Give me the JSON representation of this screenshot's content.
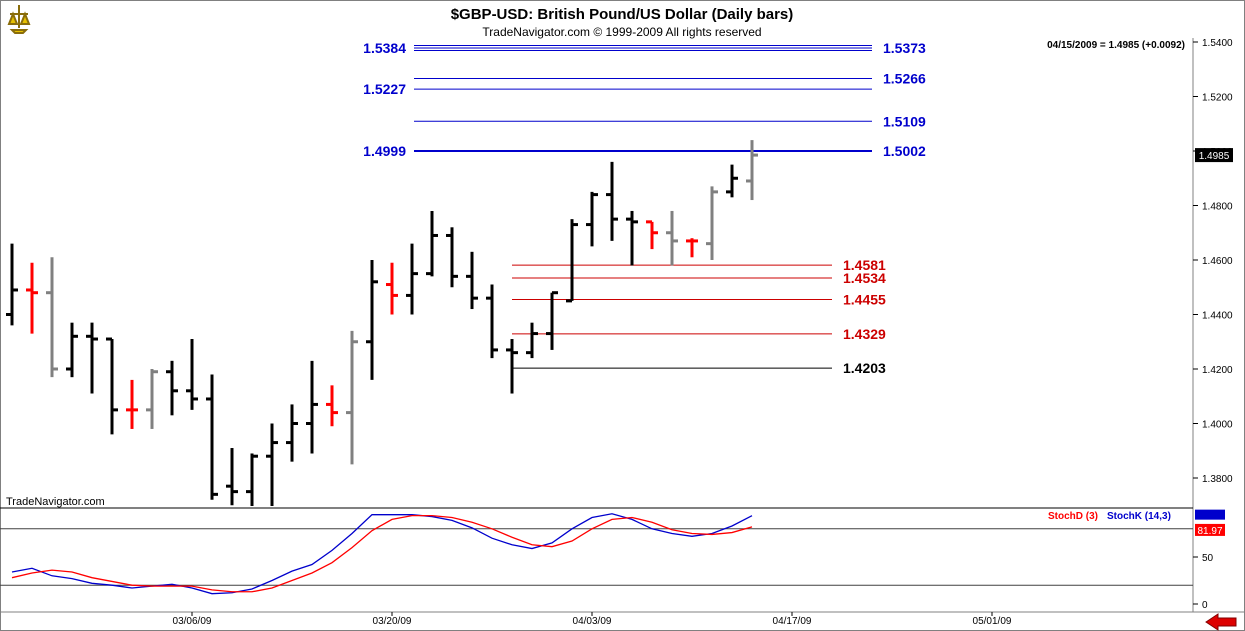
{
  "header": {
    "title": "$GBP-USD:  British Pound/US Dollar  (Daily bars)",
    "copyright": "TradeNavigator.com © 1999-2009 All rights reserved",
    "last_quote": "04/15/2009 = 1.4985 (+0.0092)",
    "watermark": "TradeNavigator.com"
  },
  "colors": {
    "up_bar": "#000000",
    "down_bar": "#808080",
    "small_bar": "#ff0000",
    "fib_blue": "#0000cc",
    "fib_red": "#cc0000",
    "stoch_k": "#0000cc",
    "stoch_d": "#ff0000"
  },
  "chart_data": [
    {
      "type": "ohlc",
      "title": "$GBP-USD:  British Pound/US Dollar  (Daily bars)",
      "ylim": [
        1.37,
        1.54
      ],
      "y_ticks": [
        "1.5400",
        "1.5200",
        "1.5000",
        "1.4800",
        "1.4600",
        "1.4400",
        "1.4200",
        "1.4000",
        "1.3800"
      ],
      "y_tick_values": [
        1.54,
        1.52,
        1.5,
        1.48,
        1.46,
        1.44,
        1.42,
        1.4,
        1.38
      ],
      "last_price_label": "1.4985",
      "x_labels": [
        "03/06/09",
        "03/20/09",
        "04/03/09",
        "04/17/09",
        "05/01/09"
      ],
      "x_label_index": [
        9,
        19,
        29,
        39,
        49
      ],
      "bars": [
        {
          "o": 1.44,
          "h": 1.466,
          "l": 1.436,
          "c": 1.449,
          "col": "black"
        },
        {
          "o": 1.449,
          "h": 1.459,
          "l": 1.433,
          "c": 1.448,
          "col": "red"
        },
        {
          "o": 1.448,
          "h": 1.461,
          "l": 1.417,
          "c": 1.42,
          "col": "gray"
        },
        {
          "o": 1.42,
          "h": 1.437,
          "l": 1.417,
          "c": 1.432,
          "col": "black"
        },
        {
          "o": 1.432,
          "h": 1.437,
          "l": 1.411,
          "c": 1.431,
          "col": "black"
        },
        {
          "o": 1.431,
          "h": 1.431,
          "l": 1.396,
          "c": 1.405,
          "col": "black"
        },
        {
          "o": 1.405,
          "h": 1.416,
          "l": 1.398,
          "c": 1.405,
          "col": "red"
        },
        {
          "o": 1.405,
          "h": 1.42,
          "l": 1.398,
          "c": 1.419,
          "col": "gray"
        },
        {
          "o": 1.419,
          "h": 1.423,
          "l": 1.403,
          "c": 1.412,
          "col": "black"
        },
        {
          "o": 1.412,
          "h": 1.431,
          "l": 1.405,
          "c": 1.409,
          "col": "black"
        },
        {
          "o": 1.409,
          "h": 1.418,
          "l": 1.372,
          "c": 1.374,
          "col": "black"
        },
        {
          "o": 1.377,
          "h": 1.391,
          "l": 1.37,
          "c": 1.375,
          "col": "black"
        },
        {
          "o": 1.375,
          "h": 1.389,
          "l": 1.369,
          "c": 1.388,
          "col": "black"
        },
        {
          "o": 1.388,
          "h": 1.4,
          "l": 1.368,
          "c": 1.393,
          "col": "black"
        },
        {
          "o": 1.393,
          "h": 1.407,
          "l": 1.386,
          "c": 1.4,
          "col": "black"
        },
        {
          "o": 1.4,
          "h": 1.423,
          "l": 1.389,
          "c": 1.407,
          "col": "black"
        },
        {
          "o": 1.407,
          "h": 1.414,
          "l": 1.399,
          "c": 1.404,
          "col": "red"
        },
        {
          "o": 1.404,
          "h": 1.434,
          "l": 1.385,
          "c": 1.43,
          "col": "gray"
        },
        {
          "o": 1.43,
          "h": 1.46,
          "l": 1.416,
          "c": 1.452,
          "col": "black"
        },
        {
          "o": 1.451,
          "h": 1.459,
          "l": 1.44,
          "c": 1.447,
          "col": "red"
        },
        {
          "o": 1.447,
          "h": 1.466,
          "l": 1.44,
          "c": 1.455,
          "col": "black"
        },
        {
          "o": 1.455,
          "h": 1.478,
          "l": 1.454,
          "c": 1.469,
          "col": "black"
        },
        {
          "o": 1.469,
          "h": 1.472,
          "l": 1.45,
          "c": 1.454,
          "col": "black"
        },
        {
          "o": 1.454,
          "h": 1.463,
          "l": 1.442,
          "c": 1.446,
          "col": "black"
        },
        {
          "o": 1.446,
          "h": 1.451,
          "l": 1.424,
          "c": 1.427,
          "col": "black"
        },
        {
          "o": 1.427,
          "h": 1.431,
          "l": 1.411,
          "c": 1.426,
          "col": "black"
        },
        {
          "o": 1.426,
          "h": 1.437,
          "l": 1.424,
          "c": 1.433,
          "col": "black"
        },
        {
          "o": 1.433,
          "h": 1.448,
          "l": 1.427,
          "c": 1.448,
          "col": "black"
        },
        {
          "o": 1.445,
          "h": 1.475,
          "l": 1.445,
          "c": 1.473,
          "col": "black"
        },
        {
          "o": 1.473,
          "h": 1.485,
          "l": 1.465,
          "c": 1.484,
          "col": "black"
        },
        {
          "o": 1.484,
          "h": 1.496,
          "l": 1.467,
          "c": 1.475,
          "col": "black"
        },
        {
          "o": 1.475,
          "h": 1.478,
          "l": 1.458,
          "c": 1.474,
          "col": "black"
        },
        {
          "o": 1.474,
          "h": 1.474,
          "l": 1.464,
          "c": 1.47,
          "col": "red"
        },
        {
          "o": 1.47,
          "h": 1.478,
          "l": 1.458,
          "c": 1.467,
          "col": "gray"
        },
        {
          "o": 1.467,
          "h": 1.468,
          "l": 1.461,
          "c": 1.467,
          "col": "red"
        },
        {
          "o": 1.466,
          "h": 1.487,
          "l": 1.46,
          "c": 1.485,
          "col": "gray"
        },
        {
          "o": 1.485,
          "h": 1.495,
          "l": 1.483,
          "c": 1.49,
          "col": "black"
        },
        {
          "o": 1.489,
          "h": 1.504,
          "l": 1.482,
          "c": 1.4985,
          "col": "gray"
        }
      ],
      "fib_levels": [
        {
          "left": "1.5384",
          "right": "1.5373",
          "value": 1.5378,
          "color": "blue",
          "double": true,
          "bar_from": -1
        },
        {
          "left": "",
          "right": "1.5266",
          "value": 1.5266,
          "color": "blue",
          "bar_from": -1
        },
        {
          "left": "1.5227",
          "right": "",
          "value": 1.5227,
          "color": "blue",
          "bar_from": -1
        },
        {
          "left": "",
          "right": "1.5109",
          "value": 1.5109,
          "color": "blue",
          "bar_from": -1
        },
        {
          "left": "1.4999",
          "right": "1.5002",
          "value": 1.5,
          "color": "blue",
          "thick": true,
          "bar_from": -1
        },
        {
          "left": "",
          "right": "1.4581",
          "value": 1.4581,
          "color": "red",
          "bar_from": 25
        },
        {
          "left": "",
          "right": "1.4534",
          "value": 1.4534,
          "color": "red",
          "bar_from": 25
        },
        {
          "left": "",
          "right": "1.4455",
          "value": 1.4455,
          "color": "red",
          "bar_from": 25
        },
        {
          "left": "",
          "right": "1.4329",
          "value": 1.4329,
          "color": "red",
          "bar_from": 25
        },
        {
          "left": "",
          "right": "1.4203",
          "value": 1.4203,
          "color": "black",
          "bar_from": 25
        }
      ]
    },
    {
      "type": "line",
      "ylim": [
        0,
        100
      ],
      "y_ticks": [
        "50",
        "0"
      ],
      "y_tick_values": [
        50,
        0
      ],
      "ref_lines": [
        80,
        20
      ],
      "legend": [
        "StochD (3)",
        "StochK (14,3)"
      ],
      "value_labels": [
        "81.97"
      ],
      "series": [
        {
          "name": "StochK (14,3)",
          "color": "#0000cc",
          "values": [
            34,
            38,
            30,
            27,
            22,
            20,
            17,
            19,
            21,
            17,
            11,
            12,
            16,
            25,
            35,
            42,
            57,
            75,
            95,
            95,
            95,
            93,
            89,
            81,
            70,
            63,
            59,
            65,
            80,
            92,
            96,
            90,
            80,
            75,
            72,
            75,
            83,
            94
          ]
        },
        {
          "name": "StochD (3)",
          "color": "#ff0000",
          "values": [
            28,
            33,
            36,
            34,
            28,
            24,
            20,
            19,
            19,
            19,
            15,
            13,
            13,
            17,
            25,
            33,
            44,
            60,
            78,
            90,
            94,
            94,
            92,
            87,
            80,
            71,
            63,
            61,
            67,
            80,
            90,
            92,
            87,
            79,
            75,
            74,
            76,
            82
          ]
        }
      ]
    }
  ]
}
